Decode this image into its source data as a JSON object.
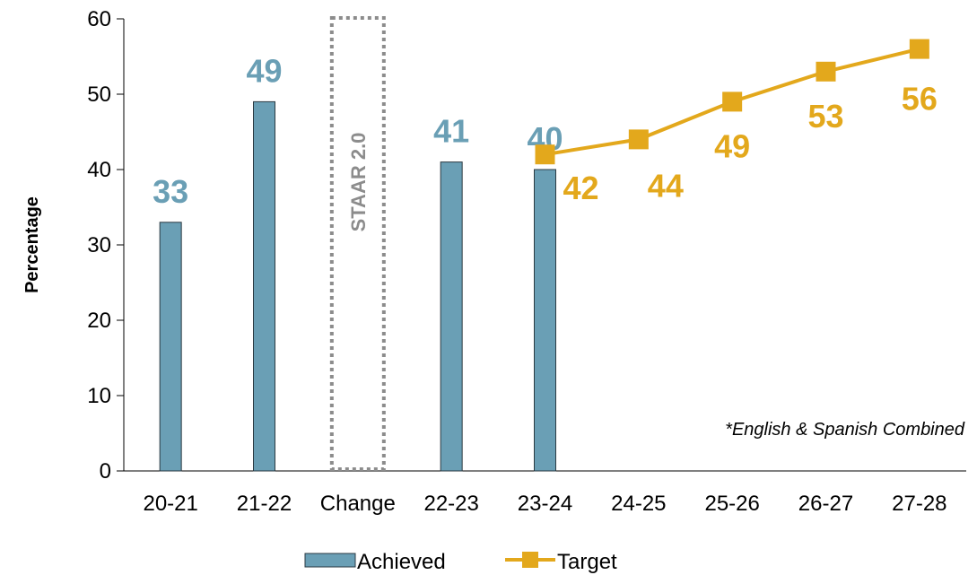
{
  "chart_data": {
    "type": "bar",
    "categories": [
      "20-21",
      "21-22",
      "Change",
      "22-23",
      "23-24",
      "24-25",
      "25-26",
      "26-27",
      "27-28"
    ],
    "ylabel": "Percentage",
    "xlabel": "",
    "ylim": [
      0,
      60
    ],
    "yticks": [
      "0",
      "10",
      "20",
      "30",
      "40",
      "50",
      "60"
    ],
    "grid": false,
    "legend_position": "bottom",
    "series": [
      {
        "name": "Achieved",
        "type": "bar",
        "color": "#6A9FB5",
        "values": [
          33,
          49,
          null,
          41,
          40,
          null,
          null,
          null,
          null
        ],
        "labels": [
          "33",
          "49",
          "",
          "41",
          "40",
          "",
          "",
          "",
          ""
        ]
      },
      {
        "name": "Target",
        "type": "line",
        "color": "#E3A81C",
        "values": [
          null,
          null,
          null,
          null,
          42,
          44,
          49,
          53,
          56
        ],
        "labels": [
          "",
          "",
          "",
          "",
          "42",
          "44",
          "49",
          "53",
          "56"
        ]
      }
    ],
    "annotations": {
      "change_box_text": "STAAR 2.0",
      "note": "*English & Spanish Combined"
    }
  },
  "colors": {
    "bar": "#6A9FB5",
    "bar_border": "#2B3A42",
    "line": "#E3A81C",
    "bar_label": "#6A9FB5",
    "line_label": "#E3A81C",
    "dashed_box": "#8C8C8C"
  }
}
